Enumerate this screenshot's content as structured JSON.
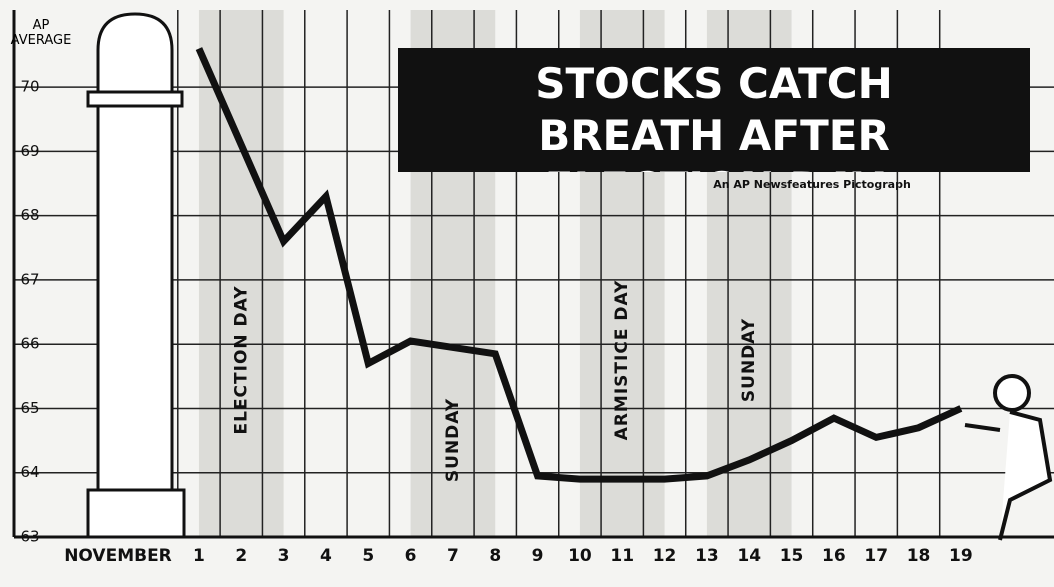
{
  "chart_data": {
    "type": "line",
    "title": "STOCKS CATCH BREATH AFTER ELECTION DAY",
    "subtitle": "An AP Newsfeatures Pictograph",
    "ylabel": "AP AVERAGE",
    "xlabel": "NOVEMBER",
    "x": [
      1,
      2,
      3,
      4,
      5,
      6,
      7,
      8,
      9,
      10,
      11,
      12,
      13,
      14,
      15,
      16,
      17,
      18,
      19
    ],
    "series": [
      {
        "name": "AP Average",
        "color": "#111111",
        "values": [
          70.6,
          69.1,
          67.6,
          68.3,
          65.7,
          66.05,
          65.95,
          65.85,
          63.95,
          63.9,
          63.9,
          63.9,
          63.95,
          64.2,
          64.5,
          64.85,
          64.55,
          64.7,
          65.0
        ]
      }
    ],
    "xlim": [
      -3.7,
      21.2
    ],
    "ylim": [
      63,
      71.2
    ],
    "xticks": [
      1,
      2,
      3,
      4,
      5,
      6,
      7,
      8,
      9,
      10,
      11,
      12,
      13,
      14,
      15,
      16,
      17,
      18,
      19
    ],
    "yticks": [
      63,
      64,
      65,
      66,
      67,
      68,
      69,
      70
    ],
    "grid": true,
    "annotations": [
      {
        "text": "ELECTION DAY",
        "x": 2
      },
      {
        "text": "SUNDAY",
        "x": 7
      },
      {
        "text": "ARMISTICE DAY",
        "x": 11
      },
      {
        "text": "SUNDAY",
        "x": 14
      }
    ]
  }
}
